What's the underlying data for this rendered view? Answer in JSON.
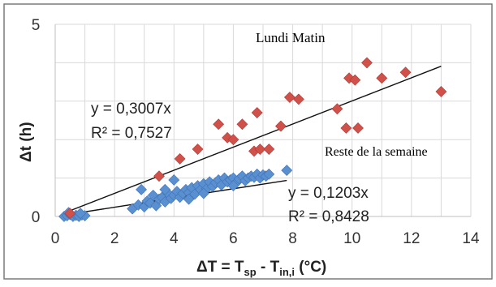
{
  "chart_data": {
    "type": "scatter",
    "xlabel_main": "ΔT = T",
    "xlabel_sub1": "sp",
    "xlabel_mid": " - T",
    "xlabel_sub2": "in,i",
    "xlabel_end": " (°C)",
    "ylabel": "Δt (h)",
    "xlim": [
      0,
      14
    ],
    "ylim": [
      0,
      5
    ],
    "xticks": [
      "0",
      "2",
      "4",
      "6",
      "8",
      "10",
      "12",
      "14"
    ],
    "yticks": [
      "0",
      "5"
    ],
    "grid": true,
    "series": [
      {
        "name": "Lundi Matin",
        "marker": "diamond",
        "color": "#d0504a",
        "points": [
          [
            0.5,
            0.08
          ],
          [
            3.5,
            1.05
          ],
          [
            4.2,
            1.5
          ],
          [
            4.8,
            1.75
          ],
          [
            5.5,
            2.4
          ],
          [
            5.8,
            2.05
          ],
          [
            6.0,
            2.0
          ],
          [
            6.3,
            2.4
          ],
          [
            6.7,
            1.7
          ],
          [
            6.8,
            2.7
          ],
          [
            6.9,
            1.75
          ],
          [
            7.2,
            1.75
          ],
          [
            7.6,
            2.35
          ],
          [
            7.9,
            3.1
          ],
          [
            8.2,
            3.05
          ],
          [
            9.5,
            2.8
          ],
          [
            9.8,
            2.3
          ],
          [
            9.9,
            3.6
          ],
          [
            10.1,
            3.55
          ],
          [
            10.2,
            2.3
          ],
          [
            10.5,
            4.0
          ],
          [
            11.0,
            3.6
          ],
          [
            11.8,
            3.75
          ],
          [
            13.0,
            3.25
          ]
        ]
      },
      {
        "name": "Reste de la semaine",
        "marker": "diamond",
        "color": "#5a8fd0",
        "points": [
          [
            0.3,
            0.0
          ],
          [
            0.4,
            0.02
          ],
          [
            0.5,
            0.05
          ],
          [
            0.6,
            0.0
          ],
          [
            0.7,
            0.03
          ],
          [
            0.8,
            0.0
          ],
          [
            0.9,
            0.04
          ],
          [
            1.0,
            0.02
          ],
          [
            0.45,
            0.1
          ],
          [
            0.85,
            0.08
          ],
          [
            2.6,
            0.2
          ],
          [
            2.8,
            0.3
          ],
          [
            2.9,
            0.7
          ],
          [
            3.0,
            0.25
          ],
          [
            3.1,
            0.4
          ],
          [
            3.2,
            0.35
          ],
          [
            3.3,
            0.55
          ],
          [
            3.4,
            0.28
          ],
          [
            3.5,
            0.45
          ],
          [
            3.6,
            0.5
          ],
          [
            3.7,
            0.38
          ],
          [
            3.8,
            0.6
          ],
          [
            3.9,
            0.47
          ],
          [
            4.0,
            0.55
          ],
          [
            4.0,
            0.95
          ],
          [
            4.1,
            0.65
          ],
          [
            4.2,
            0.5
          ],
          [
            4.3,
            0.6
          ],
          [
            4.4,
            0.7
          ],
          [
            4.5,
            0.62
          ],
          [
            4.6,
            0.75
          ],
          [
            4.7,
            0.58
          ],
          [
            4.8,
            0.8
          ],
          [
            4.9,
            0.7
          ],
          [
            5.0,
            0.85
          ],
          [
            5.1,
            0.72
          ],
          [
            5.2,
            0.9
          ],
          [
            5.3,
            0.78
          ],
          [
            5.4,
            0.88
          ],
          [
            5.5,
            0.95
          ],
          [
            5.6,
            0.82
          ],
          [
            5.7,
            1.0
          ],
          [
            5.8,
            0.9
          ],
          [
            5.9,
            0.95
          ],
          [
            6.0,
            1.0
          ],
          [
            6.1,
            0.88
          ],
          [
            6.2,
            0.98
          ],
          [
            6.3,
            1.05
          ],
          [
            6.4,
            0.93
          ],
          [
            6.5,
            1.0
          ],
          [
            6.6,
            1.05
          ],
          [
            6.7,
            1.02
          ],
          [
            6.8,
            1.1
          ],
          [
            6.9,
            1.0
          ],
          [
            7.0,
            1.08
          ],
          [
            7.1,
            1.05
          ],
          [
            7.2,
            1.1
          ],
          [
            7.8,
            1.2
          ],
          [
            5.0,
            0.6
          ],
          [
            4.5,
            0.45
          ],
          [
            6.0,
            0.8
          ],
          [
            3.7,
            0.7
          ]
        ]
      }
    ],
    "fits": [
      {
        "series": "Lundi Matin",
        "slope": 0.3007,
        "x_range": [
          0.3,
          13
        ],
        "equation": "y = 0,3007x",
        "r2": "R² = 0,7527"
      },
      {
        "series": "Reste de la semaine",
        "slope": 0.1203,
        "x_range": [
          0.3,
          7.8
        ],
        "equation": "y = 0,1203x",
        "r2": "R² = 0,8428"
      }
    ]
  }
}
